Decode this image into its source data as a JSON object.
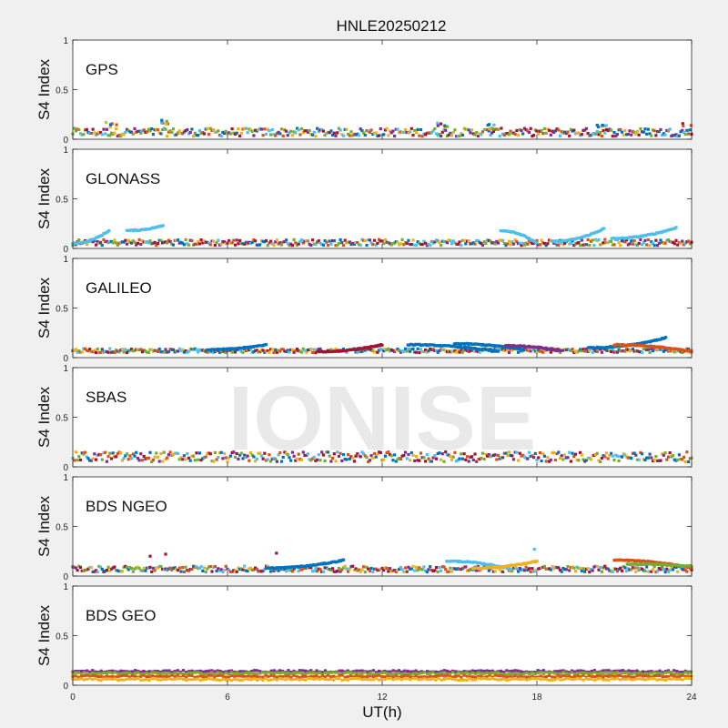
{
  "figure": {
    "title": "HNLE20250212",
    "watermark": "IONISE",
    "xlabel": "UT(h)",
    "xlim": [
      0,
      24
    ],
    "xticks": [
      0,
      6,
      12,
      18,
      24
    ],
    "colors": {
      "background": "#f0f0f0",
      "axes_face": "#ffffff",
      "axes_edge": "#262626",
      "watermark": "#e6e6e6",
      "series": [
        "#0072bd",
        "#d95319",
        "#edb120",
        "#7e2f8e",
        "#77ac30",
        "#4dbeee",
        "#a2142f"
      ]
    }
  },
  "chart_data": [
    {
      "type": "scatter",
      "panel_label": "GPS",
      "ylabel": "S4 Index",
      "ylim": [
        0,
        1
      ],
      "yticks": [
        "0",
        "0.5",
        "1"
      ],
      "x_range": [
        0,
        24
      ],
      "baseline": 0.07,
      "spread": 0.04,
      "peaks": [
        [
          1.5,
          0.17
        ],
        [
          3.6,
          0.2
        ],
        [
          14.3,
          0.17
        ],
        [
          16.2,
          0.15
        ],
        [
          20.5,
          0.15
        ],
        [
          23.9,
          0.16
        ]
      ]
    },
    {
      "type": "scatter",
      "panel_label": "GLONASS",
      "ylabel": "S4 Index",
      "ylim": [
        0,
        1
      ],
      "yticks": [
        "0",
        "0.5",
        "1"
      ],
      "x_range": [
        0,
        24
      ],
      "baseline": 0.06,
      "spread": 0.03,
      "arcs": [
        {
          "x": [
            0.0,
            1.4
          ],
          "y": [
            0.05,
            0.18
          ],
          "color": 5
        },
        {
          "x": [
            2.1,
            3.5
          ],
          "y": [
            0.18,
            0.23
          ],
          "color": 5
        },
        {
          "x": [
            16.6,
            18.0
          ],
          "y": [
            0.18,
            0.05
          ],
          "color": 5
        },
        {
          "x": [
            18.6,
            20.6
          ],
          "y": [
            0.07,
            0.2
          ],
          "color": 5
        },
        {
          "x": [
            20.9,
            23.4
          ],
          "y": [
            0.1,
            0.21
          ],
          "color": 5
        }
      ]
    },
    {
      "type": "scatter",
      "panel_label": "GALILEO",
      "ylabel": "S4 Index",
      "ylim": [
        0,
        1
      ],
      "yticks": [
        "0",
        "0.5",
        "1"
      ],
      "x_range": [
        0,
        24
      ],
      "baseline": 0.07,
      "spread": 0.02,
      "arcs": [
        {
          "x": [
            13.0,
            16.5
          ],
          "y": [
            0.13,
            0.06
          ],
          "color": 0
        },
        {
          "x": [
            14.8,
            17.5
          ],
          "y": [
            0.14,
            0.08
          ],
          "color": 0
        },
        {
          "x": [
            20.0,
            23.0
          ],
          "y": [
            0.1,
            0.2
          ],
          "color": 0
        },
        {
          "x": [
            5.2,
            7.5
          ],
          "y": [
            0.08,
            0.13
          ],
          "color": 0
        },
        {
          "x": [
            21.0,
            24.0
          ],
          "y": [
            0.13,
            0.06
          ],
          "color": 1
        },
        {
          "x": [
            9.5,
            12.0
          ],
          "y": [
            0.06,
            0.13
          ],
          "color": 6
        },
        {
          "x": [
            16.8,
            19.0
          ],
          "y": [
            0.12,
            0.07
          ],
          "color": 3
        }
      ]
    },
    {
      "type": "scatter",
      "panel_label": "SBAS",
      "ylabel": "S4 Index",
      "ylim": [
        0,
        1
      ],
      "yticks": [
        "0",
        "0.5",
        "1"
      ],
      "x_range": [
        0,
        24
      ],
      "baseline": 0.1,
      "spread": 0.05
    },
    {
      "type": "scatter",
      "panel_label": "BDS NGEO",
      "ylabel": "S4 Index",
      "ylim": [
        0,
        1
      ],
      "yticks": [
        "0",
        "0.5",
        "1"
      ],
      "x_range": [
        0,
        24
      ],
      "baseline": 0.07,
      "spread": 0.03,
      "arcs": [
        {
          "x": [
            7.5,
            10.5
          ],
          "y": [
            0.08,
            0.16
          ],
          "color": 0
        },
        {
          "x": [
            14.5,
            17.0
          ],
          "y": [
            0.15,
            0.07
          ],
          "color": 5
        },
        {
          "x": [
            15.5,
            18.0
          ],
          "y": [
            0.08,
            0.15
          ],
          "color": 2
        },
        {
          "x": [
            21.0,
            24.0
          ],
          "y": [
            0.16,
            0.08
          ],
          "color": 1
        },
        {
          "x": [
            21.5,
            24.0
          ],
          "y": [
            0.12,
            0.1
          ],
          "color": 4
        }
      ],
      "points": [
        [
          3.0,
          0.2,
          6
        ],
        [
          3.6,
          0.22,
          6
        ],
        [
          7.9,
          0.23,
          6
        ],
        [
          17.9,
          0.27,
          5
        ]
      ]
    },
    {
      "type": "scatter",
      "panel_label": "BDS GEO",
      "ylabel": "S4 Index",
      "ylim": [
        0,
        1
      ],
      "yticks": [
        "0",
        "0.5",
        "1"
      ],
      "x_range": [
        0,
        24
      ],
      "bands": [
        {
          "y": 0.14,
          "color": 3
        },
        {
          "y": 0.12,
          "color": 4
        },
        {
          "y": 0.09,
          "color": 1
        },
        {
          "y": 0.06,
          "color": 2
        }
      ]
    }
  ]
}
